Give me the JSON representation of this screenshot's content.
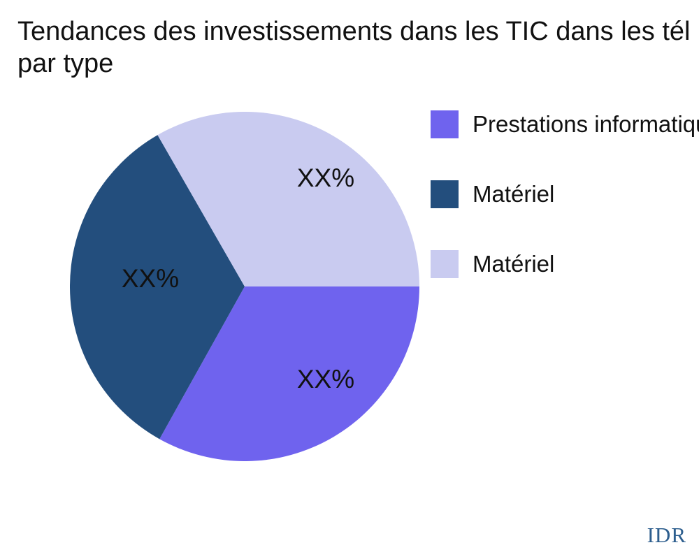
{
  "title": {
    "line1": "Tendances des investissements dans les TIC dans les tél",
    "line2": "par type"
  },
  "watermark": "IDR",
  "colors": {
    "background": "#ffffff",
    "title_text": "#111111",
    "watermark_text": "#2d5e8e"
  },
  "chart_data": {
    "type": "pie",
    "title": "Tendances des investissements dans les TIC dans les tél / par type",
    "legend_position": "right",
    "start_angle_deg": 0,
    "direction": "clockwise",
    "slices": [
      {
        "name": "Prestations informatiques",
        "label": "XX%",
        "value": 33.1,
        "color": "#6F63EE"
      },
      {
        "name": "Matériel",
        "label": "XX%",
        "value": 33.6,
        "color": "#234E7D"
      },
      {
        "name": "Matériel",
        "label": "XX%",
        "value": 33.3,
        "color": "#C9CBF0"
      }
    ]
  }
}
